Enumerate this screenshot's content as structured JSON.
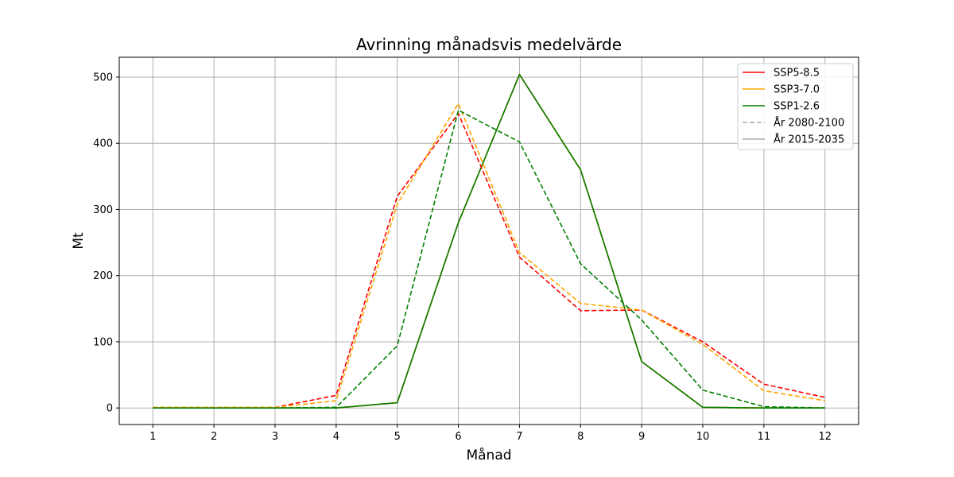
{
  "chart_data": {
    "type": "line",
    "title": "Avrinning månadsvis medelvärde",
    "xlabel": "Månad",
    "ylabel": "Mt",
    "x": [
      1,
      2,
      3,
      4,
      5,
      6,
      7,
      8,
      9,
      10,
      11,
      12
    ],
    "x_ticks": [
      "1",
      "2",
      "3",
      "4",
      "5",
      "6",
      "7",
      "8",
      "9",
      "10",
      "11",
      "12"
    ],
    "y_ticks": [
      0,
      100,
      200,
      300,
      400,
      500
    ],
    "xlim": [
      0.45,
      12.55
    ],
    "ylim": [
      -25,
      530
    ],
    "grid": true,
    "legend_position": "top-right",
    "legend": [
      {
        "label": "SSP5-8.5",
        "color": "#ff0000",
        "style": "solid"
      },
      {
        "label": "SSP3-7.0",
        "color": "#ffa500",
        "style": "solid"
      },
      {
        "label": "SSP1-2.6",
        "color": "#008000",
        "style": "solid"
      },
      {
        "label": "År 2080-2100",
        "color": "#aaaaaa",
        "style": "dashed"
      },
      {
        "label": "År 2015-2035",
        "color": "#aaaaaa",
        "style": "solid"
      }
    ],
    "series": [
      {
        "scenario": "SSP5-8.5",
        "period": "År 2015-2035",
        "color": "#ff0000",
        "style": "solid",
        "values": [
          0,
          0,
          0,
          0,
          8,
          280,
          504,
          360,
          70,
          1,
          0,
          0
        ]
      },
      {
        "scenario": "SSP3-7.0",
        "period": "År 2015-2035",
        "color": "#ffa500",
        "style": "solid",
        "values": [
          0,
          0,
          0,
          0,
          8,
          280,
          504,
          360,
          70,
          1,
          0,
          0
        ]
      },
      {
        "scenario": "SSP1-2.6",
        "period": "År 2015-2035",
        "color": "#008000",
        "style": "solid",
        "values": [
          0,
          0,
          0,
          0,
          8,
          280,
          504,
          360,
          70,
          1,
          0,
          0
        ]
      },
      {
        "scenario": "SSP5-8.5",
        "period": "År 2080-2100",
        "color": "#ff0000",
        "style": "dashed",
        "values": [
          1,
          1,
          1,
          19,
          320,
          445,
          228,
          147,
          148,
          100,
          36,
          16
        ]
      },
      {
        "scenario": "SSP3-7.0",
        "period": "År 2080-2100",
        "color": "#ffa500",
        "style": "dashed",
        "values": [
          1,
          1,
          1,
          11,
          308,
          460,
          235,
          158,
          148,
          96,
          26,
          11
        ]
      },
      {
        "scenario": "SSP1-2.6",
        "period": "År 2080-2100",
        "color": "#008000",
        "style": "dashed",
        "values": [
          0,
          0,
          0,
          1,
          94,
          450,
          402,
          218,
          133,
          27,
          2,
          0
        ]
      }
    ]
  }
}
